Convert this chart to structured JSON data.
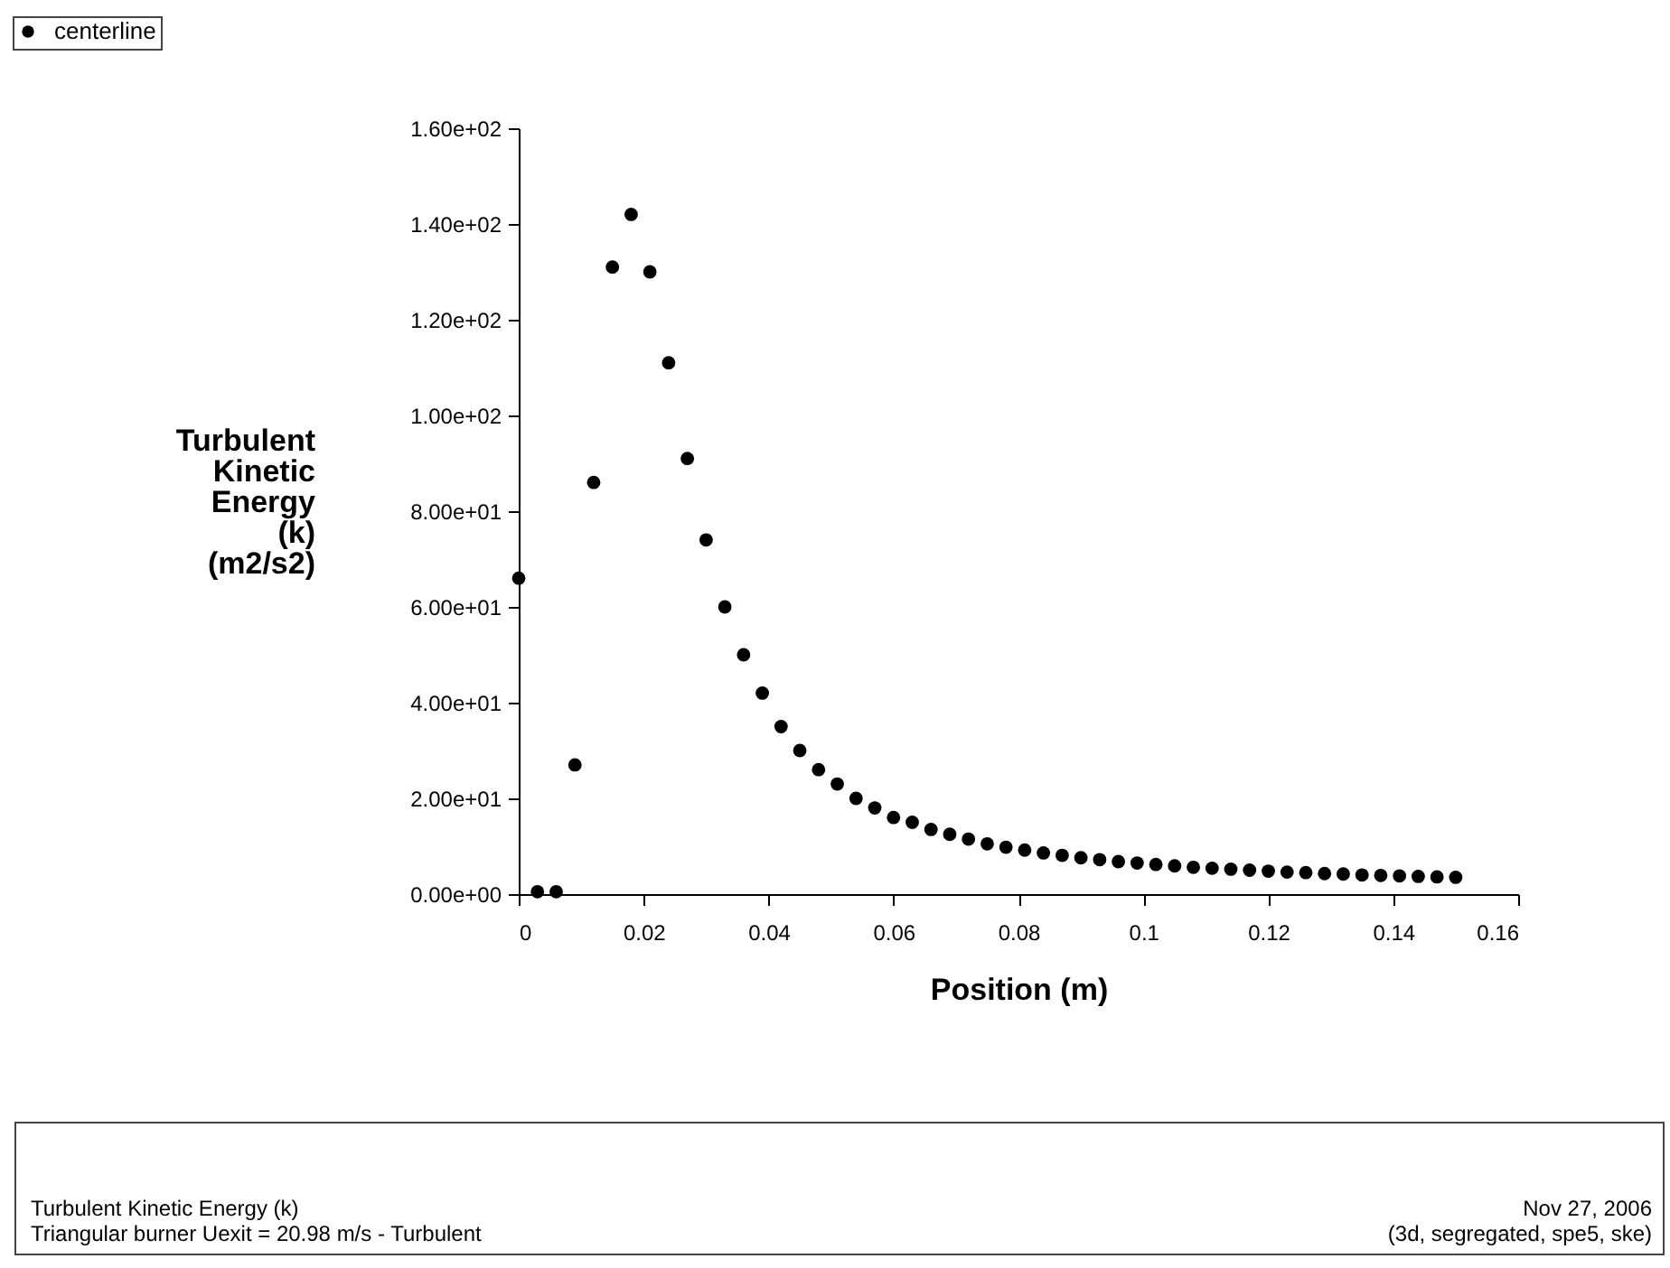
{
  "chart_data": {
    "type": "scatter",
    "xlabel": "Position (m)",
    "ylabel": "Turbulent Kinetic Energy (k) (m2/s2)",
    "marker": "circle",
    "legend": "top left",
    "grid": false,
    "x": [
      0,
      0.003,
      0.006,
      0.009,
      0.012,
      0.015,
      0.018,
      0.021,
      0.024,
      0.027,
      0.03,
      0.033,
      0.036,
      0.039,
      0.042,
      0.045,
      0.048,
      0.051,
      0.054,
      0.057,
      0.06,
      0.063,
      0.066,
      0.069,
      0.072,
      0.075,
      0.078,
      0.081,
      0.084,
      0.087,
      0.09,
      0.093,
      0.096,
      0.099,
      0.102,
      0.105,
      0.108,
      0.111,
      0.114,
      0.117,
      0.12,
      0.123,
      0.126,
      0.129,
      0.132,
      0.135,
      0.138,
      0.141,
      0.144,
      0.147,
      0.15
    ],
    "series": [
      {
        "name": "centerline",
        "color": "#000000",
        "values": [
          66,
          0.5,
          0.5,
          27,
          86,
          131,
          142,
          130,
          111,
          91,
          74,
          60,
          50,
          42,
          35,
          30,
          26,
          23,
          20,
          18,
          16,
          15,
          13.5,
          12.5,
          11.5,
          10.5,
          9.8,
          9.2,
          8.6,
          8.1,
          7.6,
          7.2,
          6.8,
          6.5,
          6.2,
          5.9,
          5.6,
          5.4,
          5.2,
          5.0,
          4.8,
          4.6,
          4.5,
          4.3,
          4.2,
          4.0,
          3.9,
          3.8,
          3.7,
          3.6,
          3.5
        ]
      }
    ],
    "xlim": [
      0,
      0.16
    ],
    "xticks": [
      0,
      0.02,
      0.04,
      0.06,
      0.08,
      0.1,
      0.12,
      0.14,
      0.16
    ],
    "ylim": [
      0,
      160
    ],
    "yticks": [
      {
        "value": 0,
        "label": "0.00e+00"
      },
      {
        "value": 20,
        "label": "2.00e+01"
      },
      {
        "value": 40,
        "label": "4.00e+01"
      },
      {
        "value": 60,
        "label": "6.00e+01"
      },
      {
        "value": 80,
        "label": "8.00e+01"
      },
      {
        "value": 100,
        "label": "1.00e+02"
      },
      {
        "value": 120,
        "label": "1.20e+02"
      },
      {
        "value": 140,
        "label": "1.40e+02"
      },
      {
        "value": 160,
        "label": "1.60e+02"
      }
    ],
    "annotations": [
      "Turbulent Kinetic Energy (k)",
      "Triangular burner  Uexit = 20.98 m/s -  Turbulent",
      "Nov 27, 2006",
      "(3d, segregated, spe5, ske)"
    ]
  }
}
